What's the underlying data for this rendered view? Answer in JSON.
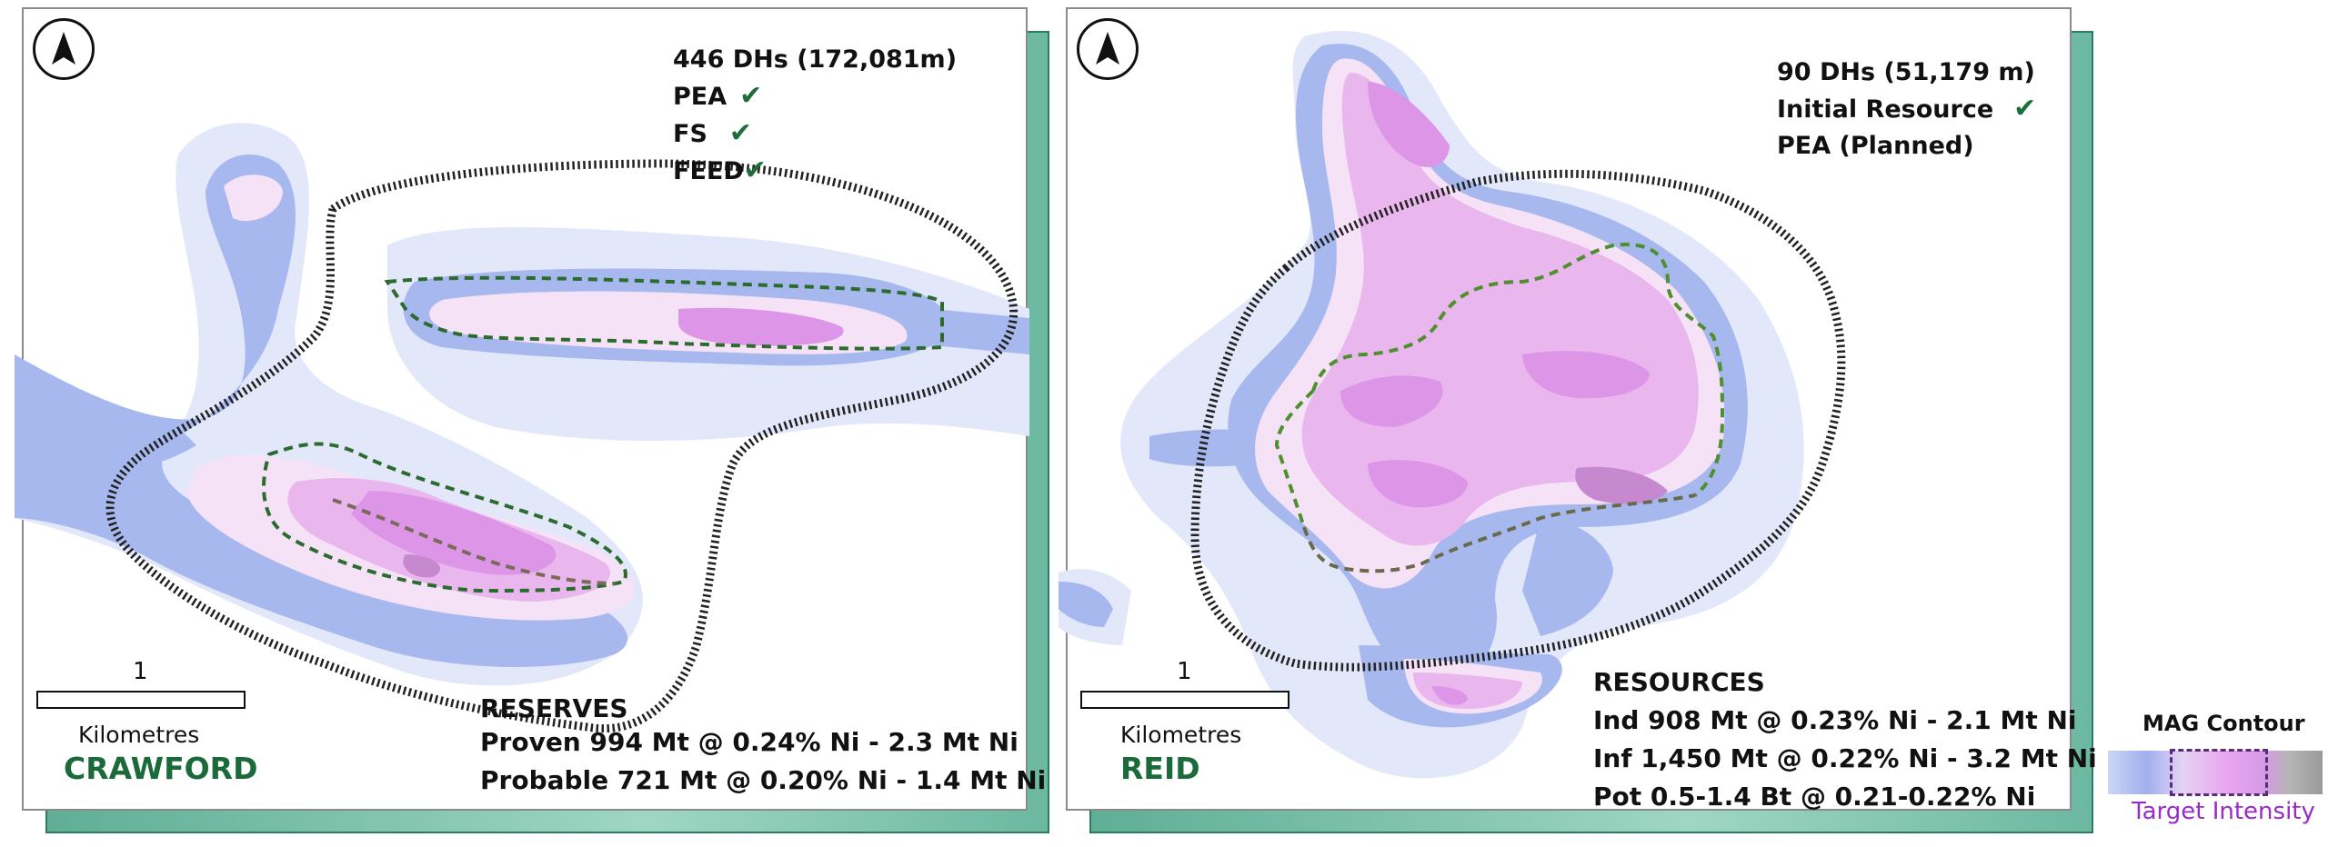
{
  "panels": {
    "crawford": {
      "name": "CRAWFORD",
      "drillholes": "446 DHs (172,081m)",
      "milestones": [
        {
          "label": "PEA",
          "status": "✔"
        },
        {
          "label": "FS",
          "status": "✔"
        },
        {
          "label": "FEED",
          "status": "✔"
        }
      ],
      "block_title": "RESERVES",
      "block_lines": [
        "Proven 994 Mt @ 0.24% Ni - 2.3 Mt Ni",
        "Probable 721 Mt @ 0.20% Ni - 1.4 Mt Ni"
      ],
      "scale_value": "1",
      "scale_unit": "Kilometres"
    },
    "reid": {
      "name": "REID",
      "drillholes": "90 DHs (51,179 m)",
      "milestones": [
        {
          "label": "Initial Resource",
          "status": "✔"
        },
        {
          "label": "PEA (Planned)",
          "status": ""
        }
      ],
      "block_title": "RESOURCES",
      "block_lines": [
        "Ind 908 Mt @ 0.23% Ni - 2.1 Mt Ni",
        "Inf 1,450 Mt @ 0.22% Ni - 3.2 Mt Ni",
        "Pot 0.5-1.4 Bt @ 0.21-0.22% Ni"
      ],
      "scale_value": "1",
      "scale_unit": "Kilometres"
    }
  },
  "legend": {
    "title": "MAG Contour",
    "subtitle": "Target Intensity"
  },
  "colors": {
    "site_name": "#1b6b3a",
    "check": "#1e6e3a",
    "legend_sub": "#9b2bc7",
    "frame": "#7fc4ae"
  },
  "icons": {
    "north_arrow": "north-arrow-icon",
    "check": "check-icon"
  }
}
